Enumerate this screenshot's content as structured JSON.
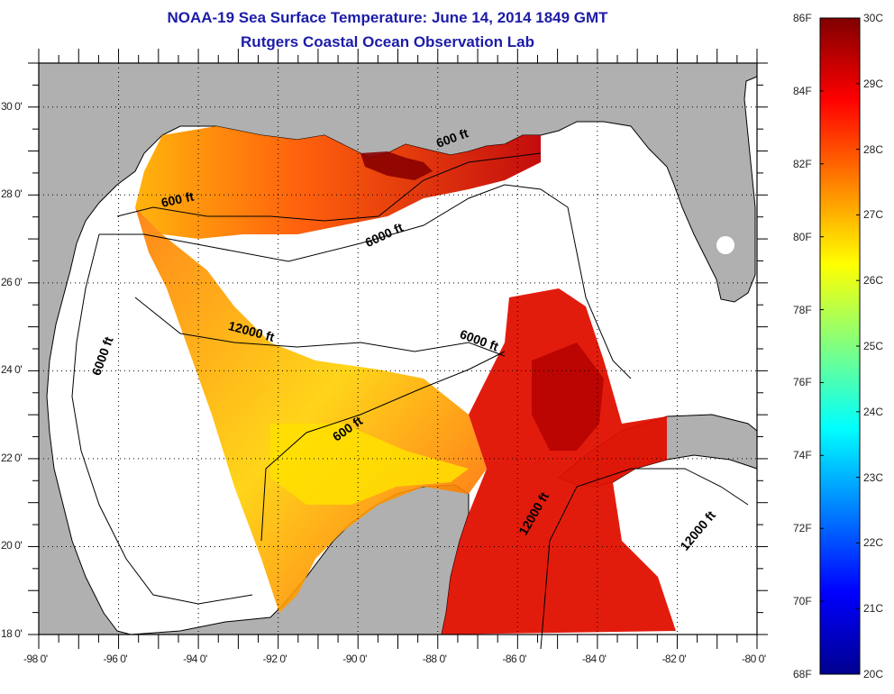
{
  "title": {
    "line1": "NOAA-19 Sea Surface Temperature:  June 14, 2014 1849 GMT",
    "line2": "Rutgers Coastal Ocean Observation Lab"
  },
  "map": {
    "lon_range": [
      -98,
      -80
    ],
    "lat_range": [
      18,
      31
    ],
    "lon_ticks": [
      "-98 0'",
      "-96 0'",
      "-94 0'",
      "-92 0'",
      "-90 0'",
      "-88 0'",
      "-86 0'",
      "-84 0'",
      "-82 0'",
      "-80 0'"
    ],
    "lat_ticks": [
      "18 0'",
      "20 0'",
      "22 0'",
      "24 0'",
      "26 0'",
      "28 0'",
      "30 0'"
    ],
    "contour_labels": [
      {
        "text": "600 ft",
        "lon": -94.5,
        "lat": 27.8
      },
      {
        "text": "6000 ft",
        "lon": -89.3,
        "lat": 27.0
      },
      {
        "text": "600 ft",
        "lon": -87.6,
        "lat": 29.2
      },
      {
        "text": "12000 ft",
        "lon": -92.7,
        "lat": 24.8
      },
      {
        "text": "6000 ft",
        "lon": -96.3,
        "lat": 24.3
      },
      {
        "text": "6000 ft",
        "lon": -87.0,
        "lat": 24.6
      },
      {
        "text": "600 ft",
        "lon": -90.2,
        "lat": 22.6
      },
      {
        "text": "12000 ft",
        "lon": -85.5,
        "lat": 20.7
      },
      {
        "text": "12000 ft",
        "lon": -81.4,
        "lat": 20.3
      }
    ],
    "land_color": "#b0b0b0",
    "nodata_color": "#ffffff"
  },
  "colorbar": {
    "f_labels": [
      "86F",
      "84F",
      "82F",
      "80F",
      "78F",
      "76F",
      "74F",
      "72F",
      "70F",
      "68F"
    ],
    "c_labels": [
      "30C",
      "29C",
      "28C",
      "27C",
      "26C",
      "25C",
      "24C",
      "23C",
      "22C",
      "21C",
      "20C"
    ],
    "min_c": 20,
    "max_c": 30,
    "colors": [
      "#00008f",
      "#0000ff",
      "#0080ff",
      "#00ffff",
      "#80ff80",
      "#ffff00",
      "#ff8000",
      "#ff0000",
      "#800000"
    ]
  }
}
